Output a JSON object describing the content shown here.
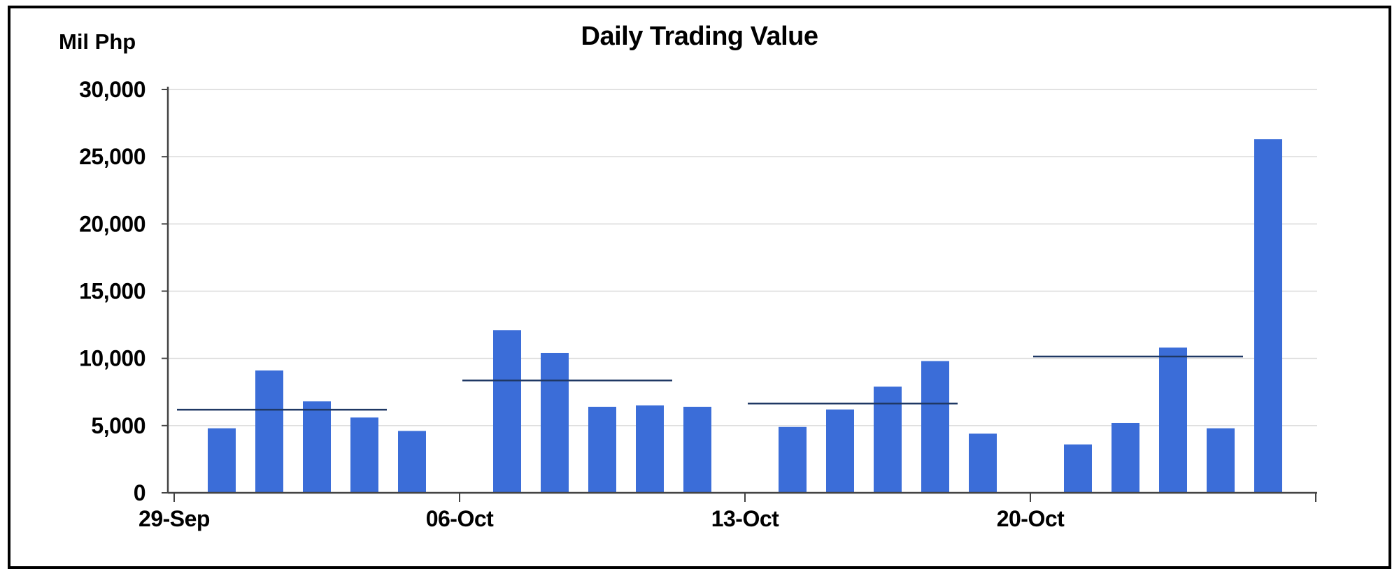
{
  "chart_data": {
    "type": "bar",
    "title": "Daily Trading Value",
    "ylabel": "Mil Php",
    "ylim": [
      0,
      30000
    ],
    "ytick_values": [
      0,
      5000,
      10000,
      15000,
      20000,
      25000,
      30000
    ],
    "ytick_labels": [
      "0",
      "5,000",
      "10,000",
      "15,000",
      "20,000",
      "25,000",
      "30,000"
    ],
    "xtick_labels": [
      "29-Sep",
      "06-Oct",
      "13-Oct",
      "20-Oct"
    ],
    "grid": true,
    "legend": "none",
    "bar_color": "#3B6DD8",
    "average_line_color": "#1F3864",
    "gridline_color": "#D9D9D9",
    "axis_color": "#444444",
    "weeks": [
      {
        "label": "29-Sep",
        "values": [
          4800,
          9100,
          6800,
          5600,
          4600
        ],
        "average": 6180
      },
      {
        "label": "06-Oct",
        "values": [
          12100,
          10400,
          6400,
          6500,
          6400
        ],
        "average": 8360
      },
      {
        "label": "13-Oct",
        "values": [
          4900,
          6200,
          7900,
          9800,
          4400
        ],
        "average": 6640
      },
      {
        "label": "20-Oct",
        "values": [
          3600,
          5200,
          10800,
          4800,
          26300
        ],
        "average": 10140
      }
    ]
  }
}
